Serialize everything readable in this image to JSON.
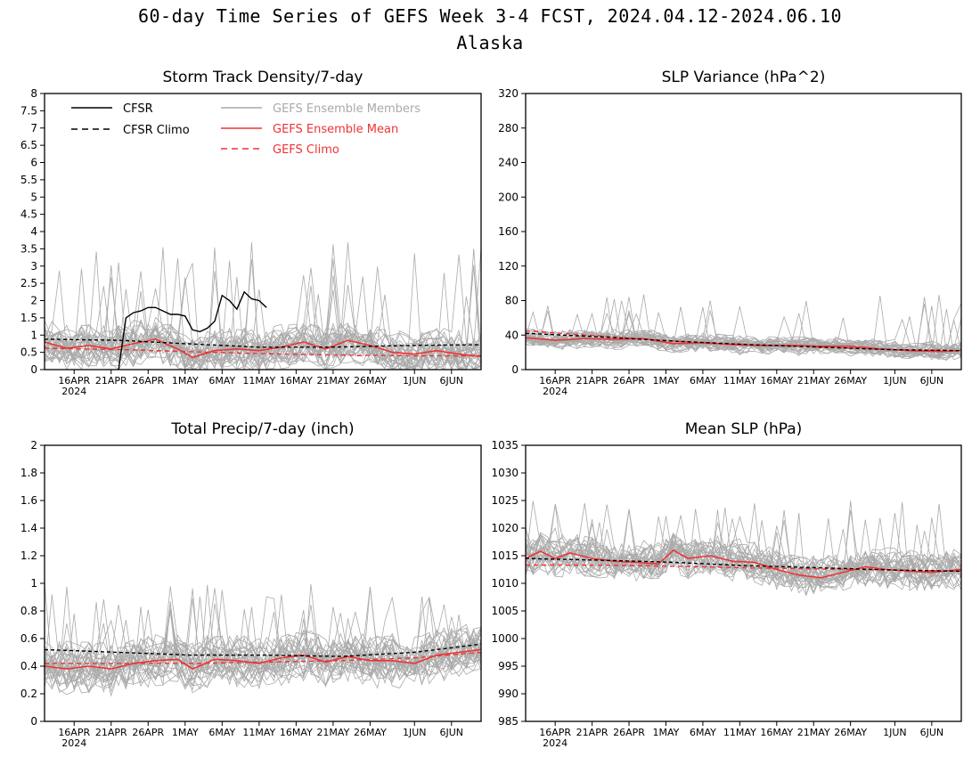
{
  "figure": {
    "title": "60-day Time Series of GEFS Week 3-4 FCST, 2024.04.12-2024.06.10",
    "subtitle": "Alaska"
  },
  "colors": {
    "cfsr": "#000000",
    "members": "#aaaaaa",
    "ens_mean": "#ee3333",
    "gefs_climo": "#ee3333",
    "axes": "#000000"
  },
  "legend": {
    "placement": "top-left of first panel",
    "entries": [
      {
        "label": "CFSR",
        "style": "solid",
        "color": "#000000"
      },
      {
        "label": "CFSR Climo",
        "style": "dashed",
        "color": "#000000"
      },
      {
        "label": "GEFS Ensemble Members",
        "style": "solid",
        "color": "#aaaaaa"
      },
      {
        "label": "GEFS Ensemble Mean",
        "style": "solid",
        "color": "#ee3333"
      },
      {
        "label": "GEFS Climo",
        "style": "dashed",
        "color": "#ee3333"
      }
    ]
  },
  "x_axis": {
    "start_date": "2024-04-12",
    "end_date": "2024-06-10",
    "tick_dates": [
      "2024-04-16",
      "2024-04-21",
      "2024-04-26",
      "2024-05-01",
      "2024-05-06",
      "2024-05-11",
      "2024-05-16",
      "2024-05-21",
      "2024-05-26",
      "2024-06-01",
      "2024-06-06"
    ],
    "tick_labels": [
      "16APR",
      "21APR",
      "26APR",
      "1MAY",
      "6MAY",
      "11MAY",
      "16MAY",
      "21MAY",
      "26MAY",
      "1JUN",
      "6JUN"
    ],
    "year_label": "2024"
  },
  "chart_data": [
    {
      "type": "line",
      "title": "Storm Track Density/7-day",
      "ylim": [
        0,
        8
      ],
      "yticks": [
        0,
        0.5,
        1,
        1.5,
        2,
        2.5,
        3,
        3.5,
        4,
        4.5,
        5,
        5.5,
        6,
        6.5,
        7,
        7.5,
        8
      ],
      "members_band": {
        "n_members": 31,
        "center": 0.6,
        "spread": 0.5,
        "max_spike": 3.7
      },
      "series": [
        {
          "name": "CFSR",
          "style": "solid",
          "x": [
            "2024-04-22",
            "2024-04-23",
            "2024-04-24",
            "2024-04-25",
            "2024-04-26",
            "2024-04-27",
            "2024-04-28",
            "2024-04-29",
            "2024-04-30",
            "2024-05-01",
            "2024-05-02",
            "2024-05-03",
            "2024-05-04",
            "2024-05-05",
            "2024-05-06",
            "2024-05-07",
            "2024-05-08",
            "2024-05-09",
            "2024-05-10",
            "2024-05-11",
            "2024-05-12"
          ],
          "y": [
            0.0,
            1.5,
            1.65,
            1.7,
            1.8,
            1.8,
            1.7,
            1.6,
            1.6,
            1.55,
            1.15,
            1.1,
            1.2,
            1.4,
            2.15,
            2.0,
            1.75,
            2.25,
            2.05,
            2.0,
            1.8
          ]
        },
        {
          "name": "CFSR Climo",
          "style": "dashed",
          "x": [
            "2024-04-12",
            "2024-04-22",
            "2024-05-01",
            "2024-05-11",
            "2024-05-21",
            "2024-05-31",
            "2024-06-10"
          ],
          "y": [
            0.88,
            0.85,
            0.75,
            0.65,
            0.65,
            0.7,
            0.72
          ]
        },
        {
          "name": "GEFS Ensemble Mean",
          "style": "solid",
          "x": [
            "2024-04-12",
            "2024-04-15",
            "2024-04-18",
            "2024-04-21",
            "2024-04-24",
            "2024-04-27",
            "2024-04-30",
            "2024-05-02",
            "2024-05-05",
            "2024-05-08",
            "2024-05-11",
            "2024-05-14",
            "2024-05-17",
            "2024-05-20",
            "2024-05-23",
            "2024-05-26",
            "2024-05-29",
            "2024-06-01",
            "2024-06-04",
            "2024-06-07",
            "2024-06-10"
          ],
          "y": [
            0.8,
            0.62,
            0.7,
            0.6,
            0.75,
            0.88,
            0.6,
            0.35,
            0.55,
            0.6,
            0.55,
            0.65,
            0.8,
            0.6,
            0.85,
            0.7,
            0.5,
            0.45,
            0.55,
            0.45,
            0.38
          ]
        },
        {
          "name": "GEFS Climo",
          "style": "dashed",
          "x": [
            "2024-04-12",
            "2024-04-22",
            "2024-05-02",
            "2024-05-12",
            "2024-05-22",
            "2024-06-01",
            "2024-06-10"
          ],
          "y": [
            0.62,
            0.58,
            0.52,
            0.46,
            0.42,
            0.4,
            0.4
          ]
        }
      ]
    },
    {
      "type": "line",
      "title": "SLP Variance (hPa^2)",
      "ylim": [
        0,
        320
      ],
      "yticks": [
        0,
        40,
        80,
        120,
        160,
        200,
        240,
        280,
        320
      ],
      "members_band": {
        "n_members": 31,
        "center": 32,
        "spread": 8,
        "max_spike": 90
      },
      "series": [
        {
          "name": "CFSR Climo",
          "style": "dashed",
          "x": [
            "2024-04-12",
            "2024-04-22",
            "2024-05-02",
            "2024-05-12",
            "2024-05-22",
            "2024-06-01",
            "2024-06-10"
          ],
          "y": [
            42,
            38,
            33,
            29,
            26,
            23,
            22
          ]
        },
        {
          "name": "GEFS Ensemble Mean",
          "style": "solid",
          "x": [
            "2024-04-12",
            "2024-04-16",
            "2024-04-20",
            "2024-04-24",
            "2024-04-28",
            "2024-05-02",
            "2024-05-06",
            "2024-05-10",
            "2024-05-14",
            "2024-05-18",
            "2024-05-22",
            "2024-05-26",
            "2024-05-30",
            "2024-06-03",
            "2024-06-07",
            "2024-06-10"
          ],
          "y": [
            37,
            34,
            36,
            35,
            36,
            30,
            31,
            29,
            28,
            28,
            27,
            27,
            24,
            22,
            21,
            22
          ]
        },
        {
          "name": "GEFS Climo",
          "style": "dashed",
          "x": [
            "2024-04-12",
            "2024-04-22",
            "2024-05-02",
            "2024-05-12",
            "2024-05-22",
            "2024-06-01",
            "2024-06-10"
          ],
          "y": [
            45,
            39,
            33,
            29,
            26,
            23,
            22
          ]
        }
      ]
    },
    {
      "type": "line",
      "title": "Total Precip/7-day (inch)",
      "ylim": [
        0,
        2
      ],
      "yticks": [
        0,
        0.2,
        0.4,
        0.6,
        0.8,
        1,
        1.2,
        1.4,
        1.6,
        1.8,
        2
      ],
      "members_band": {
        "n_members": 31,
        "center": 0.42,
        "spread": 0.14,
        "max_spike": 1.0
      },
      "series": [
        {
          "name": "CFSR Climo",
          "style": "dashed",
          "x": [
            "2024-04-12",
            "2024-04-22",
            "2024-05-02",
            "2024-05-12",
            "2024-05-22",
            "2024-06-01",
            "2024-06-10"
          ],
          "y": [
            0.52,
            0.5,
            0.48,
            0.48,
            0.47,
            0.5,
            0.56
          ]
        },
        {
          "name": "GEFS Ensemble Mean",
          "style": "solid",
          "x": [
            "2024-04-12",
            "2024-04-15",
            "2024-04-18",
            "2024-04-21",
            "2024-04-24",
            "2024-04-27",
            "2024-04-30",
            "2024-05-02",
            "2024-05-05",
            "2024-05-08",
            "2024-05-11",
            "2024-05-14",
            "2024-05-17",
            "2024-05-20",
            "2024-05-23",
            "2024-05-26",
            "2024-05-29",
            "2024-06-01",
            "2024-06-04",
            "2024-06-07",
            "2024-06-10"
          ],
          "y": [
            0.4,
            0.38,
            0.4,
            0.38,
            0.42,
            0.44,
            0.45,
            0.38,
            0.45,
            0.44,
            0.42,
            0.46,
            0.48,
            0.43,
            0.47,
            0.44,
            0.44,
            0.42,
            0.48,
            0.5,
            0.52
          ]
        },
        {
          "name": "GEFS Climo",
          "style": "dashed",
          "x": [
            "2024-04-12",
            "2024-04-22",
            "2024-05-02",
            "2024-05-12",
            "2024-05-22",
            "2024-06-01",
            "2024-06-10"
          ],
          "y": [
            0.42,
            0.42,
            0.42,
            0.43,
            0.44,
            0.46,
            0.5
          ]
        }
      ]
    },
    {
      "type": "line",
      "title": "Mean SLP (hPa)",
      "ylim": [
        985,
        1035
      ],
      "yticks": [
        985,
        990,
        995,
        1000,
        1005,
        1010,
        1015,
        1020,
        1025,
        1030,
        1035
      ],
      "members_band": {
        "n_members": 31,
        "center": 1013,
        "spread": 2.8,
        "max_spike": 1025
      },
      "series": [
        {
          "name": "CFSR Climo",
          "style": "dashed",
          "x": [
            "2024-04-12",
            "2024-04-22",
            "2024-05-02",
            "2024-05-12",
            "2024-05-22",
            "2024-06-01",
            "2024-06-10"
          ],
          "y": [
            1014.5,
            1014.2,
            1013.8,
            1013.2,
            1012.8,
            1012.4,
            1012.2
          ]
        },
        {
          "name": "GEFS Ensemble Mean",
          "style": "solid",
          "x": [
            "2024-04-12",
            "2024-04-14",
            "2024-04-16",
            "2024-04-18",
            "2024-04-21",
            "2024-04-24",
            "2024-04-27",
            "2024-04-30",
            "2024-05-02",
            "2024-05-04",
            "2024-05-07",
            "2024-05-10",
            "2024-05-13",
            "2024-05-16",
            "2024-05-19",
            "2024-05-22",
            "2024-05-25",
            "2024-05-28",
            "2024-05-31",
            "2024-06-03",
            "2024-06-06",
            "2024-06-10"
          ],
          "y": [
            1014.5,
            1015.8,
            1014.5,
            1015.5,
            1014.5,
            1014.0,
            1013.8,
            1013.5,
            1016.0,
            1014.5,
            1015.0,
            1014.0,
            1013.8,
            1012.5,
            1011.5,
            1011.0,
            1012.0,
            1013.0,
            1012.5,
            1012.2,
            1012.0,
            1012.5
          ]
        },
        {
          "name": "GEFS Climo",
          "style": "dashed",
          "x": [
            "2024-04-12",
            "2024-04-22",
            "2024-05-02",
            "2024-05-12",
            "2024-05-22",
            "2024-06-01",
            "2024-06-10"
          ],
          "y": [
            1013.3,
            1013.3,
            1013.1,
            1012.8,
            1012.6,
            1012.4,
            1012.2
          ]
        }
      ]
    }
  ]
}
